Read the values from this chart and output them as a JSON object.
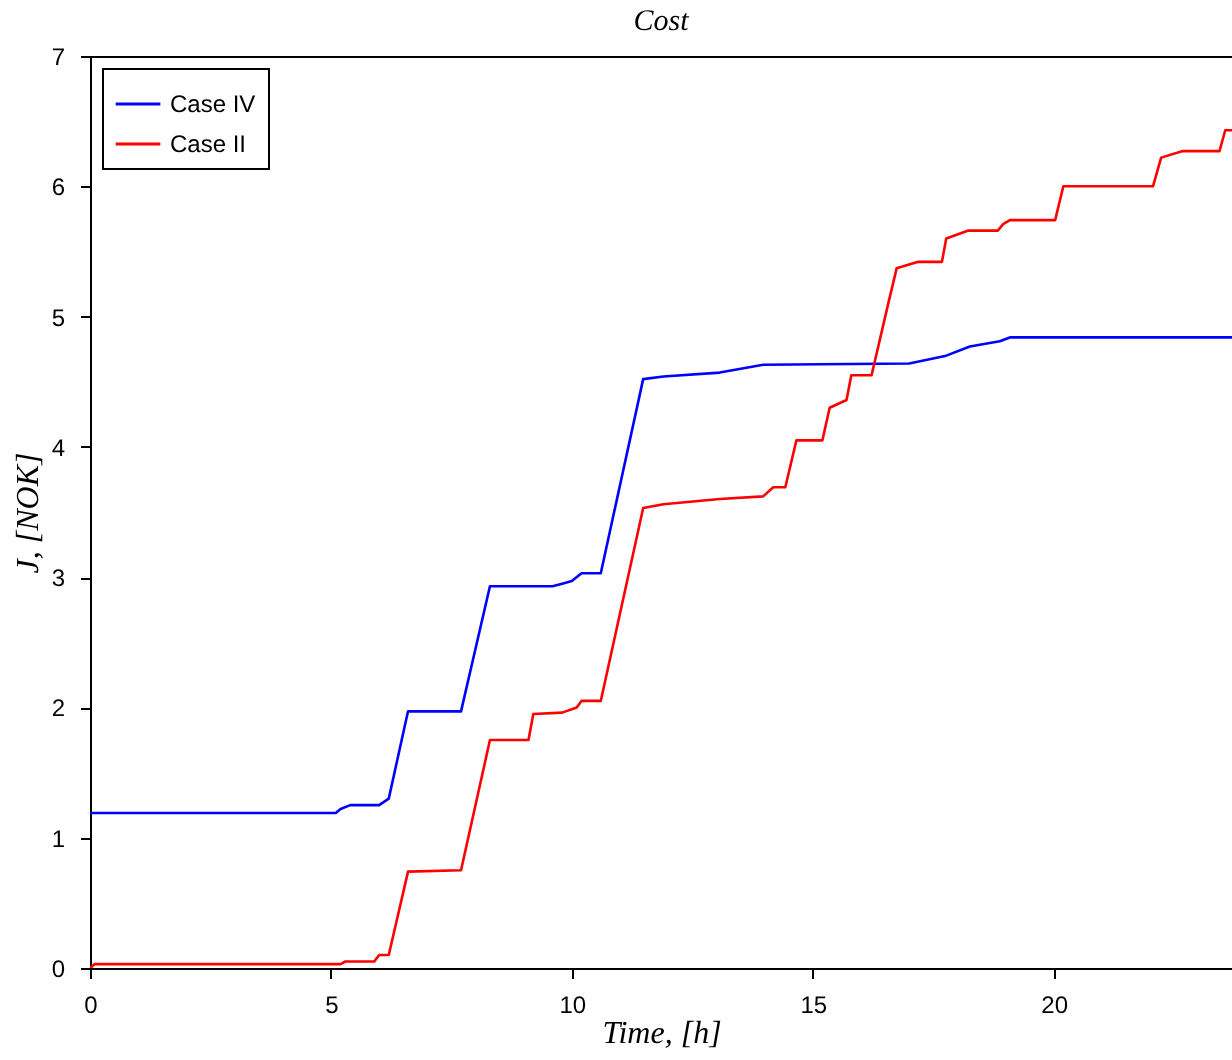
{
  "chart_data": {
    "type": "line",
    "title": "Cost",
    "xlabel": "Time, [h]",
    "ylabel": "J, [NOK]",
    "xlim": [
      0,
      23.7
    ],
    "ylim": [
      0,
      7
    ],
    "xticks": [
      0,
      5,
      10,
      15,
      20
    ],
    "yticks": [
      0,
      1,
      2,
      3,
      4,
      5,
      6,
      7
    ],
    "grid": false,
    "legend": "top left",
    "line_style": "solid",
    "marker": "none",
    "series": [
      {
        "name": "Case IV",
        "color": "#0000ff",
        "x": [
          0,
          5.1,
          5.2,
          5.4,
          6.0,
          6.2,
          6.6,
          7.7,
          8.3,
          9.6,
          9.8,
          10.0,
          10.2,
          10.6,
          11.48,
          11.9,
          13.07,
          13.97,
          17.0,
          17.77,
          18.26,
          18.88,
          19.09,
          23.7
        ],
        "values": [
          1.19,
          1.19,
          1.22,
          1.25,
          1.25,
          1.3,
          1.97,
          1.97,
          2.93,
          2.93,
          2.95,
          2.97,
          3.03,
          3.03,
          4.52,
          4.54,
          4.57,
          4.63,
          4.64,
          4.7,
          4.77,
          4.81,
          4.84,
          4.84
        ]
      },
      {
        "name": "Case II",
        "color": "#ff0000",
        "x": [
          0,
          0.1,
          5.2,
          5.3,
          5.9,
          6.0,
          6.2,
          6.6,
          7.7,
          8.3,
          9.1,
          9.2,
          9.8,
          10.1,
          10.2,
          10.6,
          11.48,
          11.9,
          13.07,
          13.97,
          14.18,
          14.43,
          14.66,
          15.2,
          15.35,
          15.7,
          15.8,
          16.22,
          16.56,
          16.74,
          17.19,
          17.68,
          17.77,
          18.23,
          18.84,
          18.95,
          19.09,
          20.03,
          20.2,
          22.06,
          22.23,
          22.68,
          23.44,
          23.56,
          23.7
        ],
        "values": [
          0,
          0.03,
          0.03,
          0.05,
          0.05,
          0.1,
          0.1,
          0.74,
          0.75,
          1.75,
          1.75,
          1.95,
          1.96,
          2.0,
          2.05,
          2.05,
          3.53,
          3.56,
          3.6,
          3.62,
          3.69,
          3.69,
          4.05,
          4.05,
          4.3,
          4.36,
          4.55,
          4.55,
          5.09,
          5.37,
          5.42,
          5.42,
          5.6,
          5.66,
          5.66,
          5.71,
          5.74,
          5.74,
          6.0,
          6.0,
          6.22,
          6.27,
          6.27,
          6.43,
          6.43
        ]
      }
    ]
  }
}
